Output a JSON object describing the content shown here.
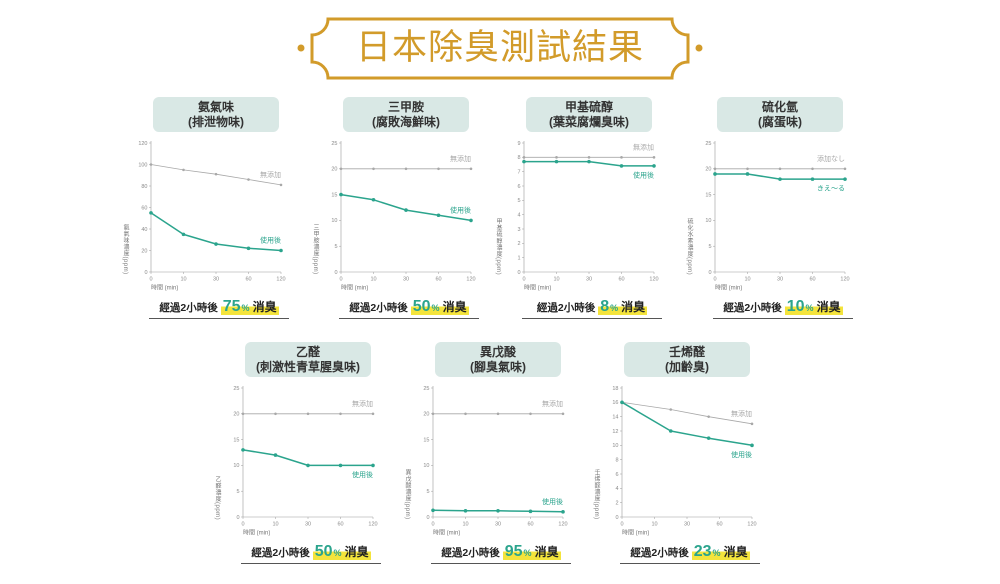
{
  "title": "日本除臭測試結果",
  "colors": {
    "accent_gold": "#d29b2a",
    "treated": "#2ba48d",
    "untreated": "#a8a8a8",
    "header_bg": "#d9e8e5",
    "highlight": "#f4e43c"
  },
  "chart_data": [
    {
      "type": "line",
      "title": "氨氣味",
      "subtitle": "(排泄物味)",
      "xlabel": "時間 (min)",
      "ylabel": "氨氣味濃度(ppm)",
      "xticks": [
        0,
        10,
        30,
        60,
        120
      ],
      "yticks": [
        0,
        20,
        40,
        60,
        80,
        100,
        120
      ],
      "ylim": [
        0,
        120
      ],
      "grid": false,
      "x": [
        0,
        10,
        30,
        60,
        120
      ],
      "series": [
        {
          "name": "無添加",
          "values": [
            100,
            95,
            91,
            86,
            81
          ]
        },
        {
          "name": "使用後",
          "values": [
            55,
            35,
            26,
            22,
            20
          ]
        }
      ],
      "result": {
        "prefix": "經過2小時後",
        "value": "75",
        "unit": "%",
        "suffix": "消臭"
      }
    },
    {
      "type": "line",
      "title": "三甲胺",
      "subtitle": "(腐敗海鮮味)",
      "xlabel": "時間 (min)",
      "ylabel": "三甲胺濃度(ppm)",
      "xticks": [
        0,
        10,
        30,
        60,
        120
      ],
      "yticks": [
        0,
        5,
        10,
        15,
        20,
        25
      ],
      "ylim": [
        0,
        25
      ],
      "grid": false,
      "x": [
        0,
        10,
        30,
        60,
        120
      ],
      "series": [
        {
          "name": "無添加",
          "values": [
            20,
            20,
            20,
            20,
            20
          ]
        },
        {
          "name": "使用後",
          "values": [
            15,
            14,
            12,
            11,
            10
          ]
        }
      ],
      "result": {
        "prefix": "經過2小時後",
        "value": "50",
        "unit": "%",
        "suffix": "消臭"
      }
    },
    {
      "type": "line",
      "title": "甲基硫醇",
      "subtitle": "(葉菜腐爛臭味)",
      "xlabel": "時間 (min)",
      "ylabel": "甲基硫醇濃度(ppm)",
      "xticks": [
        0,
        10,
        30,
        60,
        120
      ],
      "yticks": [
        0,
        1,
        2,
        3,
        4,
        5,
        6,
        7,
        8,
        9
      ],
      "ylim": [
        0,
        9
      ],
      "grid": false,
      "x": [
        0,
        10,
        30,
        60,
        120
      ],
      "series": [
        {
          "name": "無添加",
          "values": [
            8,
            8,
            8,
            8,
            8
          ]
        },
        {
          "name": "使用後",
          "values": [
            7.7,
            7.7,
            7.7,
            7.4,
            7.4
          ]
        }
      ],
      "result": {
        "prefix": "經過2小時後",
        "value": "8",
        "unit": "%",
        "suffix": "消臭"
      }
    },
    {
      "type": "line",
      "title": "硫化氫",
      "subtitle": "(腐蛋味)",
      "xlabel": "時間 (min)",
      "ylabel": "硫化水素濃度(ppm)",
      "xticks": [
        0,
        10,
        30,
        60,
        120
      ],
      "yticks": [
        0,
        5,
        10,
        15,
        20,
        25
      ],
      "ylim": [
        0,
        25
      ],
      "grid": false,
      "x": [
        0,
        10,
        30,
        60,
        120
      ],
      "series": [
        {
          "name": "添加なし",
          "values": [
            20,
            20,
            20,
            20,
            20
          ]
        },
        {
          "name": "きえ〜る",
          "values": [
            19,
            19,
            18,
            18,
            18
          ]
        }
      ],
      "result": {
        "prefix": "經過2小時後",
        "value": "10",
        "unit": "%",
        "suffix": "消臭"
      }
    },
    {
      "type": "line",
      "title": "乙醛",
      "subtitle": "(刺激性青草腥臭味)",
      "xlabel": "時間 (min)",
      "ylabel": "乙醛濃度(ppm)",
      "xticks": [
        0,
        10,
        30,
        60,
        120
      ],
      "yticks": [
        0,
        5,
        10,
        15,
        20,
        25
      ],
      "ylim": [
        0,
        25
      ],
      "grid": false,
      "x": [
        0,
        10,
        30,
        60,
        120
      ],
      "series": [
        {
          "name": "無添加",
          "values": [
            20,
            20,
            20,
            20,
            20
          ]
        },
        {
          "name": "使用後",
          "values": [
            13,
            12,
            10,
            10,
            10
          ]
        }
      ],
      "result": {
        "prefix": "經過2小時後",
        "value": "50",
        "unit": "%",
        "suffix": "消臭"
      }
    },
    {
      "type": "line",
      "title": "異戊酸",
      "subtitle": "(腳臭氣味)",
      "xlabel": "時間 (min)",
      "ylabel": "異戊酸濃度(ppm)",
      "xticks": [
        0,
        10,
        30,
        60,
        120
      ],
      "yticks": [
        0,
        5,
        10,
        15,
        20,
        25
      ],
      "ylim": [
        0,
        25
      ],
      "grid": false,
      "x": [
        0,
        10,
        30,
        60,
        120
      ],
      "series": [
        {
          "name": "無添加",
          "values": [
            20,
            20,
            20,
            20,
            20
          ]
        },
        {
          "name": "使用後",
          "values": [
            1.3,
            1.2,
            1.2,
            1.1,
            1.0
          ]
        }
      ],
      "result": {
        "prefix": "經過2小時後",
        "value": "95",
        "unit": "%",
        "suffix": "消臭"
      }
    },
    {
      "type": "line",
      "title": "壬烯醛",
      "subtitle": "(加齡臭)",
      "xlabel": "時間 (min)",
      "ylabel": "壬烯醛濃度(ppm)",
      "xticks": [
        0,
        10,
        30,
        60,
        120
      ],
      "yticks": [
        0,
        2,
        4,
        6,
        8,
        10,
        12,
        14,
        16,
        18
      ],
      "ylim": [
        0,
        18
      ],
      "grid": false,
      "x": [
        0,
        20,
        50,
        120
      ],
      "series": [
        {
          "name": "無添加",
          "values": [
            16,
            15,
            14,
            13
          ]
        },
        {
          "name": "使用後",
          "values": [
            16,
            12,
            11,
            10
          ]
        }
      ],
      "result": {
        "prefix": "經過2小時後",
        "value": "23",
        "unit": "%",
        "suffix": "消臭"
      }
    }
  ]
}
